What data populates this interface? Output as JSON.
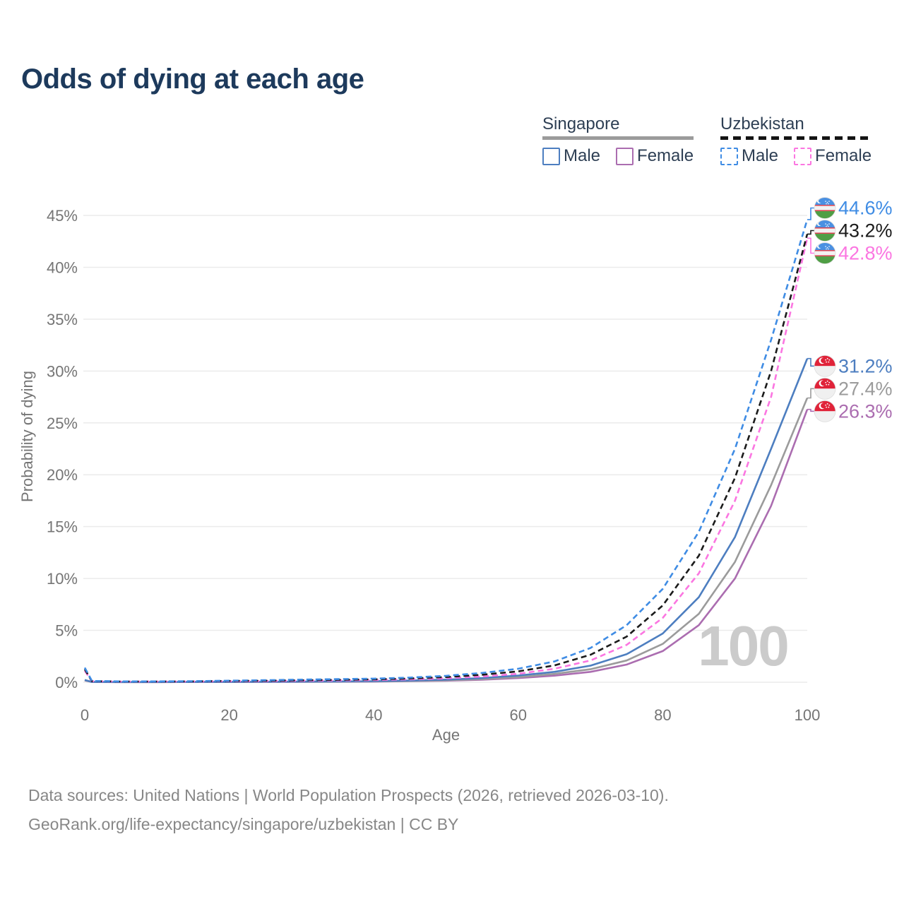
{
  "title": "Odds of dying at each age",
  "legend": {
    "groups": [
      {
        "name": "Singapore",
        "line_style": "solid",
        "underline_color": "#9b9b9b",
        "items": [
          {
            "label": "Male",
            "color": "#4d7ec0"
          },
          {
            "label": "Female",
            "color": "#ab6db0"
          }
        ]
      },
      {
        "name": "Uzbekistan",
        "line_style": "dashed",
        "underline_color": "#141414",
        "items": [
          {
            "label": "Male",
            "color": "#3f8ce4"
          },
          {
            "label": "Female",
            "color": "#fb76e1"
          }
        ]
      }
    ]
  },
  "chart_data": {
    "type": "line",
    "title": "Odds of dying at each age",
    "xlabel": "Age",
    "ylabel": "Probability of dying",
    "xlim": [
      0,
      100
    ],
    "ylim": [
      0,
      45
    ],
    "x_ticks": [
      0,
      20,
      40,
      60,
      80,
      100
    ],
    "y_ticks": [
      "0%",
      "5%",
      "10%",
      "15%",
      "20%",
      "25%",
      "30%",
      "35%",
      "40%",
      "45%"
    ],
    "grid": "horizontal-only",
    "legend_position": "top-right",
    "watermark": "100",
    "ages": [
      0,
      1,
      5,
      10,
      15,
      20,
      25,
      30,
      35,
      40,
      45,
      50,
      55,
      60,
      65,
      70,
      75,
      80,
      85,
      90,
      95,
      100
    ],
    "series": [
      {
        "name": "Uzbekistan Male",
        "country": "Uzbekistan",
        "sex": "Male",
        "color": "#3f8ce4",
        "dashed": true,
        "flag": "uz",
        "end_label": "44.6%",
        "end_value": 44.6,
        "values": [
          1.4,
          0.12,
          0.08,
          0.08,
          0.1,
          0.15,
          0.2,
          0.25,
          0.3,
          0.35,
          0.45,
          0.62,
          0.9,
          1.3,
          2.0,
          3.3,
          5.5,
          9.0,
          14.5,
          22.5,
          33.0,
          44.6
        ]
      },
      {
        "name": "Uzbekistan Both sexes",
        "country": "Uzbekistan",
        "sex": "Both",
        "color": "#1b1b1b",
        "dashed": true,
        "flag": "uz",
        "end_label": "43.2%",
        "end_value": 43.2,
        "values": [
          1.25,
          0.1,
          0.07,
          0.07,
          0.08,
          0.12,
          0.15,
          0.19,
          0.23,
          0.28,
          0.36,
          0.5,
          0.72,
          1.05,
          1.62,
          2.65,
          4.4,
          7.4,
          12.2,
          19.7,
          30.0,
          43.2
        ]
      },
      {
        "name": "Uzbekistan Female",
        "country": "Uzbekistan",
        "sex": "Female",
        "color": "#fb76e1",
        "dashed": true,
        "flag": "uz",
        "end_label": "42.8%",
        "end_value": 42.8,
        "values": [
          1.1,
          0.09,
          0.06,
          0.06,
          0.07,
          0.09,
          0.11,
          0.14,
          0.17,
          0.21,
          0.28,
          0.38,
          0.55,
          0.82,
          1.3,
          2.1,
          3.6,
          6.2,
          10.5,
          17.5,
          27.5,
          42.8
        ]
      },
      {
        "name": "Singapore Male",
        "country": "Singapore",
        "sex": "Male",
        "color": "#4d7ec0",
        "dashed": false,
        "flag": "sg",
        "end_label": "31.2%",
        "end_value": 31.2,
        "values": [
          0.22,
          0.03,
          0.02,
          0.02,
          0.03,
          0.04,
          0.05,
          0.06,
          0.08,
          0.1,
          0.16,
          0.25,
          0.4,
          0.65,
          1.0,
          1.6,
          2.7,
          4.7,
          8.2,
          14.0,
          22.5,
          31.2
        ]
      },
      {
        "name": "Singapore Both sexes",
        "country": "Singapore",
        "sex": "Both",
        "color": "#9b9b9b",
        "dashed": false,
        "flag": "sg",
        "end_label": "27.4%",
        "end_value": 27.4,
        "values": [
          0.19,
          0.025,
          0.015,
          0.015,
          0.025,
          0.03,
          0.04,
          0.05,
          0.06,
          0.08,
          0.12,
          0.19,
          0.3,
          0.5,
          0.8,
          1.25,
          2.1,
          3.7,
          6.6,
          11.6,
          19.0,
          27.4
        ]
      },
      {
        "name": "Singapore Female",
        "country": "Singapore",
        "sex": "Female",
        "color": "#ab6db0",
        "dashed": false,
        "flag": "sg",
        "end_label": "26.3%",
        "end_value": 26.3,
        "values": [
          0.17,
          0.02,
          0.012,
          0.012,
          0.02,
          0.02,
          0.03,
          0.04,
          0.05,
          0.06,
          0.1,
          0.15,
          0.24,
          0.4,
          0.63,
          1.0,
          1.7,
          3.0,
          5.5,
          10.0,
          17.0,
          26.3
        ]
      }
    ]
  },
  "footer": {
    "line1": "Data sources: United Nations | World Population Prospects (2026, retrieved 2026-03-10).",
    "line2": "GeoRank.org/life-expectancy/singapore/uzbekistan | CC BY"
  }
}
